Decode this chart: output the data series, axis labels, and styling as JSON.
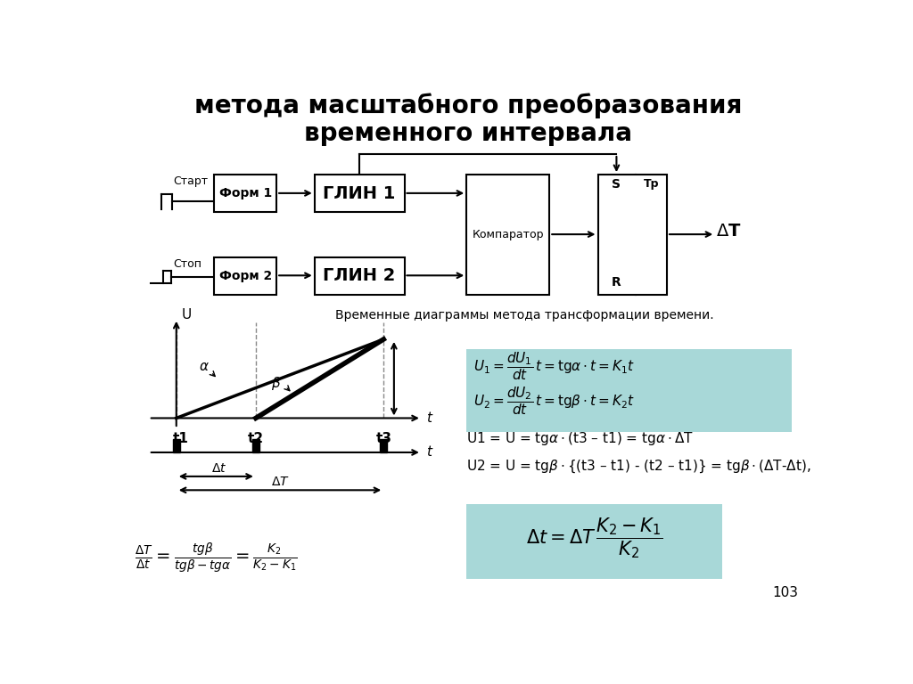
{
  "title_line1": "метода масштабного преобразования",
  "title_line2": "временного интервала",
  "bg_color": "#ffffff",
  "highlight_color": "#a8d8d8",
  "page_number": "103",
  "subtitle_diag": "Временные диаграммы метода трансформации времени."
}
